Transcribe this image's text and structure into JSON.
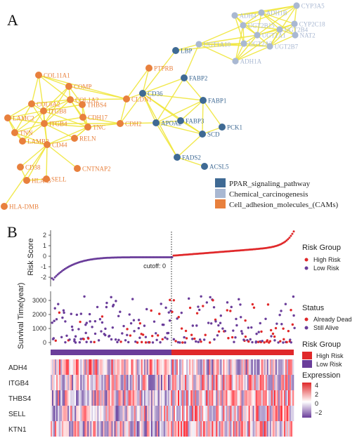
{
  "panel_a": {
    "label": "A",
    "legend": [
      {
        "label": "PPAR_signaling_pathway",
        "color": "#3f6a94"
      },
      {
        "label": "Chemical_carcinogenesis",
        "color": "#a9b8d2"
      },
      {
        "label": "Cell_adhesion_molecules_(CAMs)",
        "color": "#e8803d"
      }
    ],
    "nodes": [
      {
        "id": "n-adh4",
        "label": "ADH4",
        "group": 1
      },
      {
        "id": "n-adh1b",
        "label": "ADH1B",
        "group": 1
      },
      {
        "id": "n-cyp3a5",
        "label": "CYP3A5",
        "group": 1
      },
      {
        "id": "n-cyp2c18",
        "label": "CYP2C18",
        "group": 1
      },
      {
        "id": "n-nat2",
        "label": "NAT2",
        "group": 1
      },
      {
        "id": "n-ugt2b7",
        "label": "UGT2B7",
        "group": 1
      },
      {
        "id": "n-ugt2b15",
        "label": "UGT2B15",
        "group": 1
      },
      {
        "id": "n-adh1a",
        "label": "ADH1A",
        "group": 1
      },
      {
        "id": "n-ugt1a",
        "label": "UGT1A1",
        "group": 1
      },
      {
        "id": "n-ugt2a3",
        "label": "UGT2A3",
        "group": 1
      },
      {
        "id": "n-ugt2b4",
        "label": "UGT2B4",
        "group": 1
      },
      {
        "id": "n-ugt1a10",
        "label": "UGT1A10",
        "group": 1
      },
      {
        "id": "n-lbp",
        "label": "LBP",
        "group": 0
      },
      {
        "id": "n-fabp2",
        "label": "FABP2",
        "group": 0
      },
      {
        "id": "n-fabp1",
        "label": "FABP1",
        "group": 0
      },
      {
        "id": "n-cd36",
        "label": "CD36",
        "group": 0
      },
      {
        "id": "n-fabp3",
        "label": "FABP3",
        "group": 0
      },
      {
        "id": "n-apoa2",
        "label": "APOA2",
        "group": 0
      },
      {
        "id": "n-scd",
        "label": "SCD",
        "group": 0
      },
      {
        "id": "n-pck1",
        "label": "PCK1",
        "group": 0
      },
      {
        "id": "n-fads2",
        "label": "FADS2",
        "group": 0
      },
      {
        "id": "n-acsl5",
        "label": "ACSL5",
        "group": 0
      },
      {
        "id": "n-ptprb",
        "label": "PTPRB",
        "group": 2
      },
      {
        "id": "n-cldn",
        "label": "CLDN1",
        "group": 2
      },
      {
        "id": "n-col11a1",
        "label": "COL11A1",
        "group": 2
      },
      {
        "id": "n-comp",
        "label": "COMP",
        "group": 2
      },
      {
        "id": "n-col1a2",
        "label": "COL1A2",
        "group": 2
      },
      {
        "id": "n-thbs4",
        "label": "THBS4",
        "group": 2
      },
      {
        "id": "n-cdh17",
        "label": "CDH17",
        "group": 2
      },
      {
        "id": "n-cdh2",
        "label": "CDH2",
        "group": 2
      },
      {
        "id": "n-tnc",
        "label": "TNC",
        "group": 2
      },
      {
        "id": "n-col6a2",
        "label": "COL6A2",
        "group": 2
      },
      {
        "id": "n-itgb8",
        "label": "ITGB8",
        "group": 2
      },
      {
        "id": "n-itgb4",
        "label": "ITGB4",
        "group": 2
      },
      {
        "id": "n-lamc2",
        "label": "LAMC2",
        "group": 2
      },
      {
        "id": "n-tnn",
        "label": "TNN",
        "group": 2
      },
      {
        "id": "n-lamb3",
        "label": "LAMB3",
        "group": 2
      },
      {
        "id": "n-cd44",
        "label": "CD44",
        "group": 2
      },
      {
        "id": "n-reln",
        "label": "RELN",
        "group": 2
      },
      {
        "id": "n-cd38",
        "label": "CD38",
        "group": 2
      },
      {
        "id": "n-hlab",
        "label": "HLA-B",
        "group": 2
      },
      {
        "id": "n-sell",
        "label": "SELL",
        "group": 2
      },
      {
        "id": "n-cntnap2",
        "label": "CNTNAP2",
        "group": 2
      },
      {
        "id": "n-hladmb",
        "label": "HLA-DMB",
        "group": 2
      }
    ],
    "edges": [
      [
        "n-adh4",
        "n-adh1b"
      ],
      [
        "n-adh4",
        "n-ugt2b15"
      ],
      [
        "n-adh4",
        "n-ugt1a"
      ],
      [
        "n-adh4",
        "n-ugt2a3"
      ],
      [
        "n-adh4",
        "n-cyp3a5"
      ],
      [
        "n-adh1b",
        "n-cyp3a5"
      ],
      [
        "n-adh1b",
        "n-cyp2c18"
      ],
      [
        "n-adh1b",
        "n-ugt2b15"
      ],
      [
        "n-adh1b",
        "n-ugt1a"
      ],
      [
        "n-adh1b",
        "n-ugt2b4"
      ],
      [
        "n-adh1b",
        "n-nat2"
      ],
      [
        "n-cyp3a5",
        "n-cyp2c18"
      ],
      [
        "n-cyp3a5",
        "n-ugt2b15"
      ],
      [
        "n-cyp3a5",
        "n-ugt1a"
      ],
      [
        "n-cyp3a5",
        "n-ugt2b7"
      ],
      [
        "n-cyp2c18",
        "n-nat2"
      ],
      [
        "n-cyp2c18",
        "n-ugt2b7"
      ],
      [
        "n-cyp2c18",
        "n-ugt2b4"
      ],
      [
        "n-cyp2c18",
        "n-ugt1a"
      ],
      [
        "n-nat2",
        "n-ugt2b7"
      ],
      [
        "n-nat2",
        "n-ugt2b4"
      ],
      [
        "n-ugt2b15",
        "n-ugt1a"
      ],
      [
        "n-ugt2b15",
        "n-ugt2a3"
      ],
      [
        "n-ugt2b15",
        "n-ugt2b4"
      ],
      [
        "n-ugt2b15",
        "n-ugt1a10"
      ],
      [
        "n-ugt2b15",
        "n-adh1a"
      ],
      [
        "n-ugt1a",
        "n-ugt2a3"
      ],
      [
        "n-ugt1a",
        "n-ugt2b4"
      ],
      [
        "n-ugt1a",
        "n-ugt1a10"
      ],
      [
        "n-ugt1a",
        "n-adh1a"
      ],
      [
        "n-ugt1a",
        "n-ugt2b7"
      ],
      [
        "n-ugt2a3",
        "n-ugt1a10"
      ],
      [
        "n-ugt2a3",
        "n-adh1a"
      ],
      [
        "n-ugt2a3",
        "n-ugt2b7"
      ],
      [
        "n-ugt2b4",
        "n-ugt2b7"
      ],
      [
        "n-ugt2b4",
        "n-adh1a"
      ],
      [
        "n-ugt1a10",
        "n-ugt2b7"
      ],
      [
        "n-ugt1a10",
        "n-adh1a"
      ],
      [
        "n-ugt2b7",
        "n-adh1a"
      ],
      [
        "n-lbp",
        "n-ugt1a10"
      ],
      [
        "n-lbp",
        "n-cd36"
      ],
      [
        "n-lbp",
        "n-ugt2a3"
      ],
      [
        "n-fabp2",
        "n-cd36"
      ],
      [
        "n-fabp2",
        "n-ugt1a10"
      ],
      [
        "n-fabp2",
        "n-fabp1"
      ],
      [
        "n-fabp2",
        "n-apoa2"
      ],
      [
        "n-fabp1",
        "n-cd36"
      ],
      [
        "n-fabp1",
        "n-scd"
      ],
      [
        "n-fabp1",
        "n-fabp3"
      ],
      [
        "n-fabp1",
        "n-apoa2"
      ],
      [
        "n-fabp1",
        "n-pck1"
      ],
      [
        "n-cd36",
        "n-fabp3"
      ],
      [
        "n-cd36",
        "n-apoa2"
      ],
      [
        "n-cd36",
        "n-scd"
      ],
      [
        "n-cd36",
        "n-cldn"
      ],
      [
        "n-cd36",
        "n-cdh2"
      ],
      [
        "n-cd36",
        "n-ptprb"
      ],
      [
        "n-cd36",
        "n-fads2"
      ],
      [
        "n-fabp3",
        "n-apoa2"
      ],
      [
        "n-fabp3",
        "n-scd"
      ],
      [
        "n-apoa2",
        "n-scd"
      ],
      [
        "n-apoa2",
        "n-cdh2"
      ],
      [
        "n-scd",
        "n-fads2"
      ],
      [
        "n-scd",
        "n-pck1"
      ],
      [
        "n-fads2",
        "n-acsl5"
      ],
      [
        "n-fads2",
        "n-apoa2"
      ],
      [
        "n-ptprb",
        "n-cldn"
      ],
      [
        "n-cldn",
        "n-cdh2"
      ],
      [
        "n-cldn",
        "n-col1a2"
      ],
      [
        "n-cldn",
        "n-col11a1"
      ],
      [
        "n-cldn",
        "n-comp"
      ],
      [
        "n-cdh2",
        "n-tnc"
      ],
      [
        "n-cdh2",
        "n-cdh17"
      ],
      [
        "n-cdh2",
        "n-itgb4"
      ],
      [
        "n-col11a1",
        "n-comp"
      ],
      [
        "n-col11a1",
        "n-col1a2"
      ],
      [
        "n-col11a1",
        "n-itgb8"
      ],
      [
        "n-col11a1",
        "n-col6a2"
      ],
      [
        "n-comp",
        "n-col1a2"
      ],
      [
        "n-comp",
        "n-itgb8"
      ],
      [
        "n-comp",
        "n-thbs4"
      ],
      [
        "n-comp",
        "n-itgb4"
      ],
      [
        "n-col1a2",
        "n-thbs4"
      ],
      [
        "n-col1a2",
        "n-itgb8"
      ],
      [
        "n-col1a2",
        "n-itgb4"
      ],
      [
        "n-col1a2",
        "n-col6a2"
      ],
      [
        "n-col1a2",
        "n-cdh17"
      ],
      [
        "n-col1a2",
        "n-tnc"
      ],
      [
        "n-thbs4",
        "n-itgb8"
      ],
      [
        "n-thbs4",
        "n-tnc"
      ],
      [
        "n-thbs4",
        "n-cdh17"
      ],
      [
        "n-cdh17",
        "n-tnc"
      ],
      [
        "n-cdh17",
        "n-itgb4"
      ],
      [
        "n-tnc",
        "n-itgb4"
      ],
      [
        "n-tnc",
        "n-itgb8"
      ],
      [
        "n-tnc",
        "n-cd44"
      ],
      [
        "n-tnc",
        "n-reln"
      ],
      [
        "n-col6a2",
        "n-itgb8"
      ],
      [
        "n-col6a2",
        "n-lamc2"
      ],
      [
        "n-col6a2",
        "n-itgb4"
      ],
      [
        "n-col6a2",
        "n-tnn"
      ],
      [
        "n-itgb8",
        "n-itgb4"
      ],
      [
        "n-itgb8",
        "n-lamc2"
      ],
      [
        "n-itgb8",
        "n-tnn"
      ],
      [
        "n-itgb8",
        "n-lamb3"
      ],
      [
        "n-itgb8",
        "n-cd44"
      ],
      [
        "n-itgb4",
        "n-lamc2"
      ],
      [
        "n-itgb4",
        "n-tnn"
      ],
      [
        "n-itgb4",
        "n-lamb3"
      ],
      [
        "n-itgb4",
        "n-cd44"
      ],
      [
        "n-itgb4",
        "n-reln"
      ],
      [
        "n-lamc2",
        "n-tnn"
      ],
      [
        "n-lamc2",
        "n-lamb3"
      ],
      [
        "n-tnn",
        "n-lamb3"
      ],
      [
        "n-tnn",
        "n-cd44"
      ],
      [
        "n-lamb3",
        "n-cd44"
      ],
      [
        "n-cd44",
        "n-reln"
      ],
      [
        "n-cd44",
        "n-cd38"
      ],
      [
        "n-cd44",
        "n-hlab"
      ],
      [
        "n-cd44",
        "n-sell"
      ],
      [
        "n-cd44",
        "n-cntnap2"
      ],
      [
        "n-cd44",
        "n-hladmb"
      ],
      [
        "n-cd38",
        "n-hlab"
      ],
      [
        "n-hlab",
        "n-sell"
      ],
      [
        "n-reln",
        "n-tnc"
      ]
    ]
  },
  "panel_b": {
    "label": "B",
    "risk_score": {
      "ylabel": "Risk Score",
      "y_ticks": [
        2,
        1,
        0,
        -1,
        -2
      ],
      "cutoff_label": "cutoff: 0",
      "legend_title": "Risk Group",
      "legend": [
        {
          "label": "High Risk",
          "color": "#e0282a"
        },
        {
          "label": "Low Risk",
          "color": "#6a3d9a"
        }
      ]
    },
    "survival": {
      "ylabel": "Survival Time(year)",
      "y_ticks": [
        3000,
        2000,
        1000,
        0
      ],
      "legend_title": "Status",
      "legend": [
        {
          "label": "Already Dead",
          "color": "#e0282a"
        },
        {
          "label": "Still Alive",
          "color": "#6a3d9a"
        }
      ]
    },
    "group_bar": {
      "legend_title": "Risk Group",
      "legend": [
        {
          "label": "High Risk",
          "color": "#e0282a"
        },
        {
          "label": "Low Risk",
          "color": "#6a3d9a"
        }
      ]
    },
    "heatmap": {
      "genes": [
        "ADH4",
        "ITGB4",
        "THBS4",
        "SELL",
        "KTN1"
      ],
      "legend_title": "Expression",
      "legend_ticks": [
        "4",
        "2",
        "0",
        "−2"
      ]
    }
  }
}
